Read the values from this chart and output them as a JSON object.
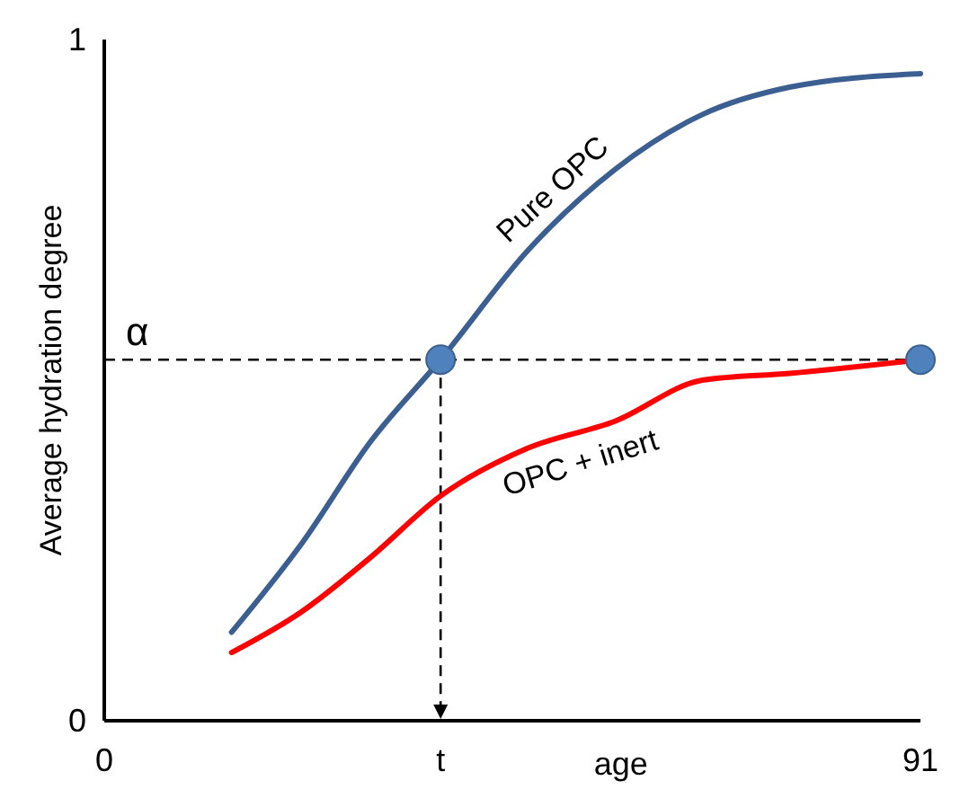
{
  "chart_data": {
    "type": "line",
    "ylabel": "Average hydration degree",
    "xlabel": "age",
    "xlim": [
      0,
      91
    ],
    "ylim": [
      0,
      1
    ],
    "xticks": [
      0,
      {
        "value": 37.5,
        "label": "t"
      },
      91
    ],
    "yticks": [
      0,
      1
    ],
    "marker": "none",
    "line_style": "solid",
    "ref_lines": [
      {
        "axis": "y",
        "value": 0.53,
        "label": "α",
        "line_style": "dashed",
        "color": "#000000"
      },
      {
        "axis": "x",
        "value": 37.5,
        "label": null,
        "line_style": "dashed",
        "color": "#000000"
      }
    ],
    "series": [
      {
        "name": "Pure OPC",
        "color": "#3c5f91",
        "x": [
          14.2,
          22,
          29.7,
          37.5,
          47.2,
          57,
          66.7,
          76.4,
          91
        ],
        "values": [
          0.13,
          0.26,
          0.41,
          0.53,
          0.69,
          0.81,
          0.89,
          0.93,
          0.95
        ]
      },
      {
        "name": "OPC + inert",
        "color": "#ff0000",
        "x": [
          14.2,
          22,
          29.7,
          37.5,
          47.2,
          57,
          66.7,
          76.4,
          91
        ],
        "values": [
          0.1,
          0.16,
          0.24,
          0.33,
          0.4,
          0.44,
          0.5,
          0.51,
          0.53
        ]
      },
      {
        "type": "scatter",
        "marker": "circle",
        "color": "#4f81bd",
        "x": [
          37.5,
          91
        ],
        "values": [
          0.53,
          0.53
        ]
      }
    ]
  }
}
